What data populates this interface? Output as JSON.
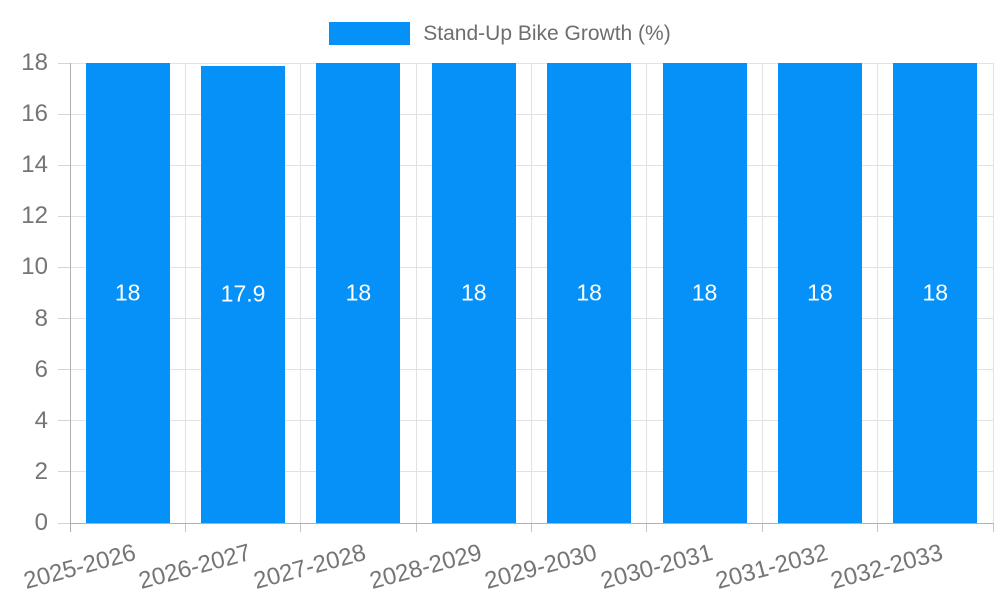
{
  "chart_data": {
    "type": "bar",
    "title": "Stand-Up Bike Growth (%)",
    "categories": [
      "2025-2026",
      "2026-2027",
      "2027-2028",
      "2028-2029",
      "2029-2030",
      "2030-2031",
      "2031-2032",
      "2032-2033"
    ],
    "series": [
      {
        "name": "Stand-Up Bike Growth (%)",
        "values": [
          18,
          17.9,
          18,
          18,
          18,
          18,
          18,
          18
        ]
      }
    ],
    "bar_labels": [
      "18",
      "17.9",
      "18",
      "18",
      "18",
      "18",
      "18",
      "18"
    ],
    "xlabel": "",
    "ylabel": "",
    "ylim": [
      0,
      18
    ],
    "yticks": [
      0,
      2,
      4,
      6,
      8,
      10,
      12,
      14,
      16,
      18
    ],
    "grid": true,
    "legend_position": "top",
    "colors": {
      "bar": "#0591f8",
      "gridline": "#e2e2e2",
      "axis": "#b0b0b0",
      "axis_label": "#757575",
      "bar_label": "#ffffff",
      "legend_text": "#6e6e6e"
    }
  }
}
